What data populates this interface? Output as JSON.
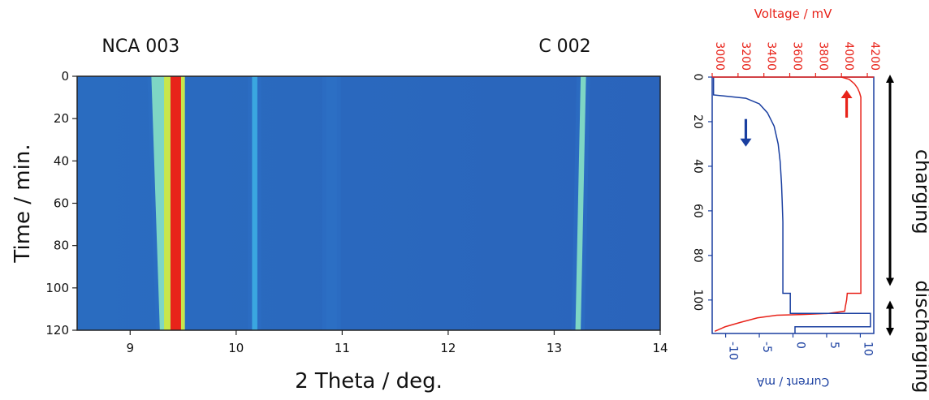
{
  "chart_data": [
    {
      "type": "heatmap",
      "annotations": [
        {
          "text": "NCA 003",
          "at_x": 9.1
        },
        {
          "text": "C 002",
          "at_x": 13.1
        }
      ],
      "xlabel": "2 Theta / deg.",
      "ylabel": "Time / min.",
      "xlim": [
        8.5,
        14
      ],
      "ylim": [
        0,
        120
      ],
      "y_reversed": true,
      "x_ticks": [
        9,
        10,
        11,
        12,
        13,
        14
      ],
      "y_ticks": [
        0,
        20,
        40,
        60,
        80,
        100,
        120
      ],
      "colormap": [
        "#1e4fa8",
        "#2c6fc4",
        "#3aa7e0",
        "#7ed6c4",
        "#c8e64a",
        "#f3b51e",
        "#e8231a"
      ],
      "bands": [
        {
          "x_start": 9.2,
          "x_end": 9.38,
          "x_drift_end": 9.28,
          "intensity": 0.55
        },
        {
          "x_start": 9.38,
          "x_end": 9.48,
          "intensity": 1.0
        },
        {
          "x_start": 10.15,
          "x_end": 10.2,
          "intensity": 0.3
        },
        {
          "x_start": 10.85,
          "x_end": 10.95,
          "intensity": 0.22
        },
        {
          "x_start": 13.25,
          "x_end": 13.3,
          "x_drift_end": 13.2,
          "intensity": 0.45
        }
      ]
    },
    {
      "type": "line",
      "orientation": "vertical",
      "y_label": "",
      "ylim": [
        0,
        115
      ],
      "y_ticks": [
        0,
        20,
        40,
        60,
        80,
        100
      ],
      "y_reversed": true,
      "top_axis": {
        "label": "Voltage / mV",
        "range": [
          3000,
          4250
        ],
        "ticks": [
          3000,
          3200,
          3400,
          3600,
          3800,
          4000,
          4200
        ],
        "color": "#e8231a"
      },
      "bottom_axis": {
        "label": "Current / mA",
        "range": [
          -12,
          12
        ],
        "ticks": [
          -10,
          -5,
          0,
          5,
          10
        ],
        "tick_labels": [
          "-10",
          "-5",
          "0",
          "5",
          "10"
        ],
        "color": "#1a3fa0"
      },
      "series": [
        {
          "axis": "top",
          "color": "#e8231a",
          "points": [
            [
              4000,
              0
            ],
            [
              4060,
              1
            ],
            [
              4100,
              3
            ],
            [
              4125,
              5
            ],
            [
              4140,
              7
            ],
            [
              4150,
              9
            ],
            [
              4150,
              97
            ],
            [
              4045,
              97
            ],
            [
              4040,
              100
            ],
            [
              4030,
              103
            ],
            [
              4025,
              105
            ],
            [
              3900,
              106
            ],
            [
              3700,
              106.5
            ],
            [
              3500,
              106.8
            ],
            [
              3350,
              108
            ],
            [
              3220,
              110
            ],
            [
              3100,
              112
            ],
            [
              3020,
              114
            ]
          ]
        },
        {
          "axis": "bottom",
          "color": "#1a3fa0",
          "points": [
            [
              -11.8,
              0
            ],
            [
              -11.8,
              8
            ],
            [
              -7,
              9.5
            ],
            [
              -5,
              12
            ],
            [
              -3.8,
              16
            ],
            [
              -2.8,
              22
            ],
            [
              -2.2,
              30
            ],
            [
              -1.9,
              38
            ],
            [
              -1.7,
              48
            ],
            [
              -1.6,
              56
            ],
            [
              -1.5,
              65
            ],
            [
              -1.5,
              97
            ],
            [
              -0.4,
              97
            ],
            [
              -0.4,
              106
            ],
            [
              11.5,
              106
            ],
            [
              11.5,
              112
            ],
            [
              0.3,
              112
            ],
            [
              0.3,
              115
            ]
          ]
        }
      ],
      "arrows": [
        {
          "color": "#1a3fa0",
          "direction": "down",
          "at": [
            -7,
            25
          ]
        },
        {
          "color": "#e8231a",
          "direction": "up",
          "at": [
            4040,
            12
          ]
        }
      ],
      "side_labels": [
        {
          "text": "charging",
          "from": 0,
          "to": 97
        },
        {
          "text": "discharging",
          "from": 97,
          "to": 115
        }
      ]
    }
  ]
}
